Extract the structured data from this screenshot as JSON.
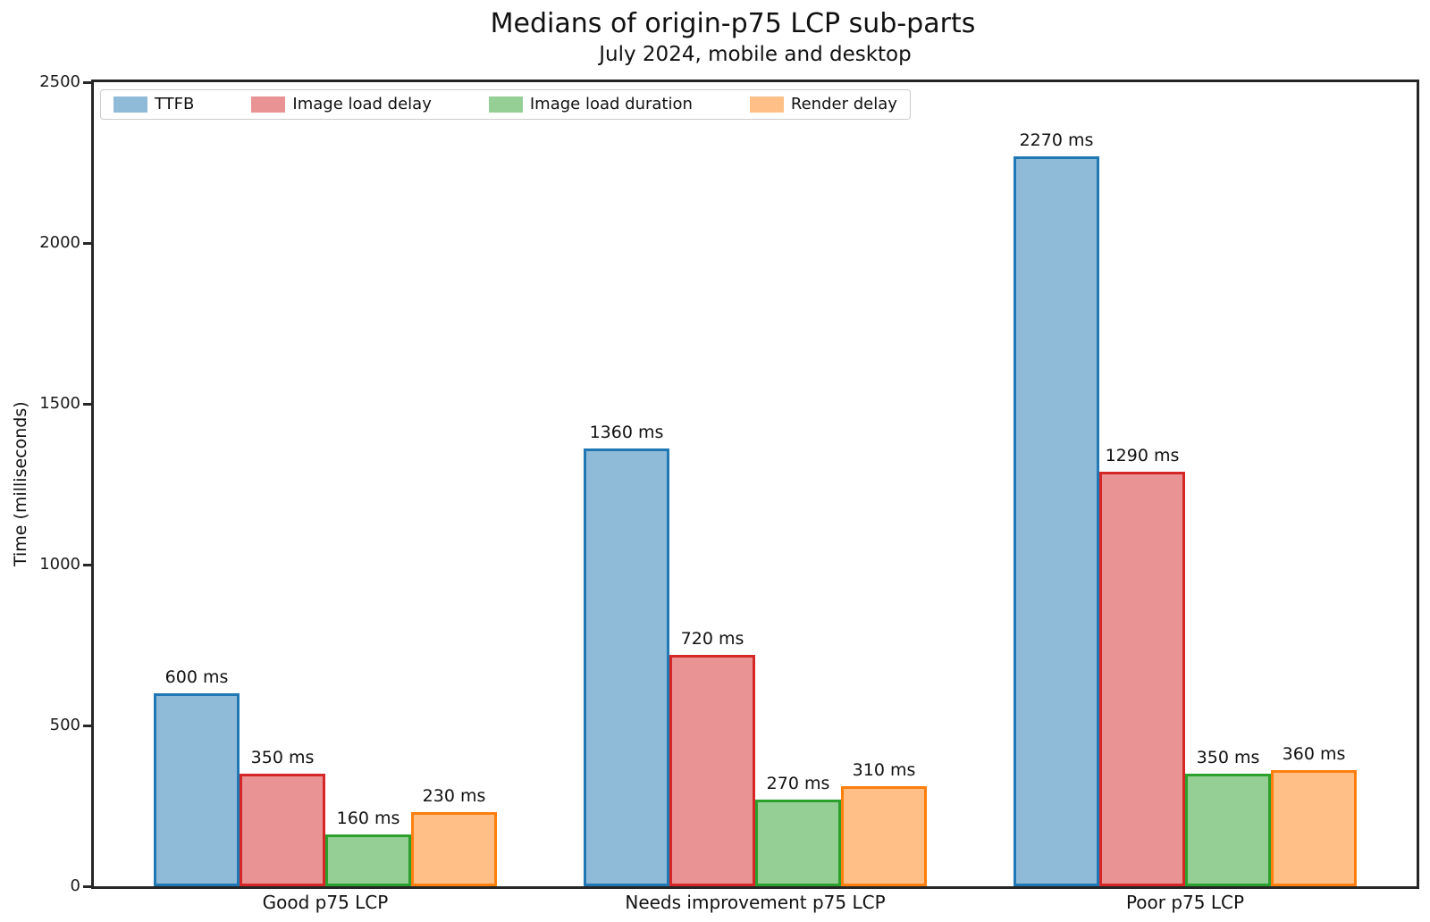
{
  "chart": {
    "title": "Medians of origin-p75 LCP sub-parts",
    "subtitle": "July 2024, mobile and desktop",
    "ylabel": "Time (milliseconds)"
  },
  "chart_data": {
    "type": "bar",
    "title": "Medians of origin-p75 LCP sub-parts",
    "subtitle": "July 2024, mobile and desktop",
    "xlabel": "",
    "ylabel": "Time (milliseconds)",
    "ylim": [
      0,
      2500
    ],
    "yticks": [
      0,
      500,
      1000,
      1500,
      2000,
      2500
    ],
    "grid": false,
    "legend_position": "upper left",
    "value_label_suffix": " ms",
    "categories": [
      "Good p75 LCP",
      "Needs improvement p75 LCP",
      "Poor p75 LCP"
    ],
    "series": [
      {
        "name": "TTFB",
        "values": [
          600,
          1360,
          2270
        ],
        "fill": "#8fbbd9",
        "edge": "#1f77b4"
      },
      {
        "name": "Image load delay",
        "values": [
          350,
          720,
          1290
        ],
        "fill": "#ea9394",
        "edge": "#d62728"
      },
      {
        "name": "Image load duration",
        "values": [
          160,
          270,
          350
        ],
        "fill": "#95cf95",
        "edge": "#2ca02c"
      },
      {
        "name": "Render delay",
        "values": [
          230,
          310,
          360
        ],
        "fill": "#ffbf86",
        "edge": "#ff7f0e"
      }
    ]
  }
}
